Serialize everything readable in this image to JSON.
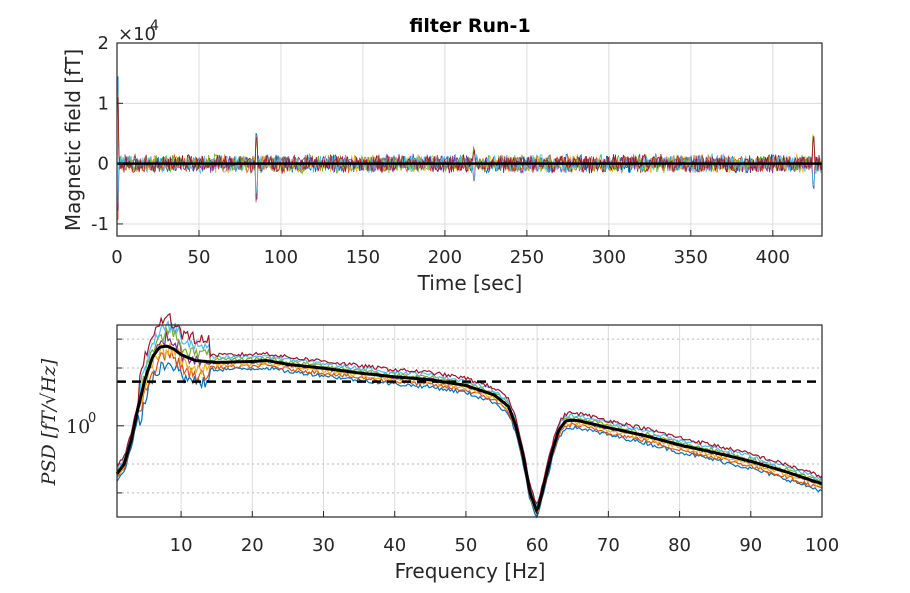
{
  "chart_data": [
    {
      "type": "line",
      "title": "filter Run-1",
      "xlabel": "Time [sec]",
      "ylabel": "Magnetic field [fT]",
      "y_exponent_label": "×10",
      "y_exponent_power": "4",
      "xlim": [
        0,
        430
      ],
      "ylim": [
        -1.2,
        2.0
      ],
      "x_ticks": [
        0,
        50,
        100,
        150,
        200,
        250,
        300,
        350,
        400
      ],
      "x_tick_labels": [
        "0",
        "50",
        "100",
        "150",
        "200",
        "250",
        "300",
        "350",
        "400"
      ],
      "y_ticks": [
        -1,
        0,
        1,
        2
      ],
      "y_tick_labels": [
        "-1",
        "0",
        "1",
        "2"
      ],
      "grid": true,
      "noise_band_half_width": 0.17,
      "spikes": [
        {
          "x": 0.3,
          "ymin": -1.0,
          "ymax": 1.65
        },
        {
          "x": 85,
          "ymin": -0.65,
          "ymax": 0.55
        },
        {
          "x": 218,
          "ymin": -0.35,
          "ymax": 0.3
        },
        {
          "x": 425,
          "ymin": -0.45,
          "ymax": 0.5
        }
      ],
      "series_colors": [
        "#0072BD",
        "#D95319",
        "#EDB120",
        "#7E2F8E",
        "#77AC30",
        "#4DBEEE",
        "#A2142F"
      ]
    },
    {
      "type": "line",
      "xlabel": "Frequency [Hz]",
      "ylabel": "PSD [fT/√Hz]",
      "xlim": [
        1,
        100
      ],
      "y_log_scale": true,
      "ylim_log10": [
        -0.95,
        1.05
      ],
      "x_ticks": [
        10,
        20,
        30,
        40,
        50,
        60,
        70,
        80,
        90,
        100
      ],
      "x_tick_labels": [
        "10",
        "20",
        "30",
        "40",
        "50",
        "60",
        "70",
        "80",
        "90",
        "100"
      ],
      "y_ticks_log10": [
        0
      ],
      "y_tick_labels": [
        "10",
        "0"
      ],
      "grid": true,
      "reference_line_log10": 0.46,
      "mean_curve": {
        "x": [
          1,
          2,
          3,
          4,
          5,
          6,
          7,
          8,
          9,
          10,
          12,
          15,
          20,
          22,
          25,
          30,
          35,
          40,
          45,
          50,
          54,
          56,
          57,
          58,
          59,
          60,
          61,
          62,
          63,
          64,
          65,
          66,
          70,
          75,
          80,
          85,
          90,
          95,
          99,
          100
        ],
        "y_log10": [
          -0.5,
          -0.4,
          -0.15,
          0.2,
          0.5,
          0.72,
          0.82,
          0.83,
          0.8,
          0.74,
          0.68,
          0.66,
          0.67,
          0.68,
          0.64,
          0.6,
          0.55,
          0.51,
          0.48,
          0.42,
          0.32,
          0.2,
          0.0,
          -0.3,
          -0.7,
          -0.9,
          -0.6,
          -0.3,
          -0.05,
          0.05,
          0.06,
          0.05,
          -0.02,
          -0.1,
          -0.2,
          -0.28,
          -0.37,
          -0.48,
          -0.58,
          -0.6
        ]
      },
      "series_colors": [
        "#0072BD",
        "#D95319",
        "#EDB120",
        "#7E2F8E",
        "#77AC30",
        "#4DBEEE",
        "#A2142F"
      ]
    }
  ]
}
